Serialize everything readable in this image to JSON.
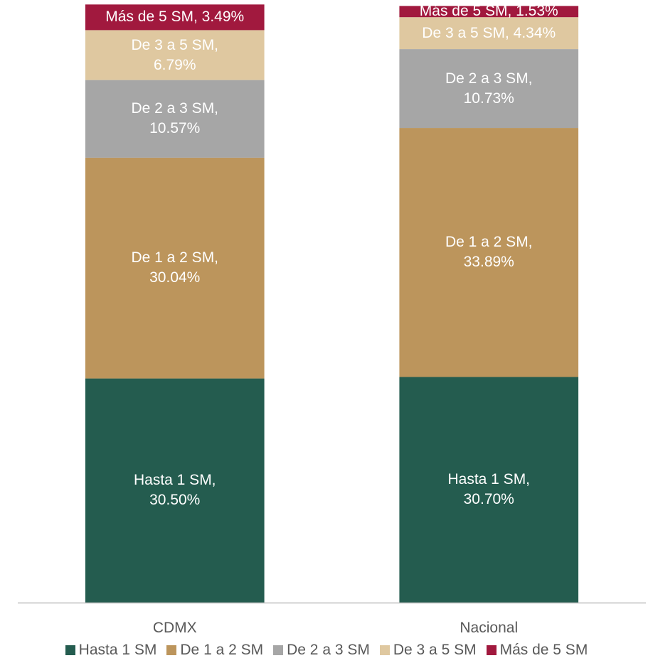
{
  "chart_data": {
    "type": "stacked_bar",
    "categories": [
      "CDMX",
      "Nacional"
    ],
    "series": [
      {
        "name": "Hasta 1 SM",
        "color": "#245c4f",
        "values": [
          30.5,
          30.7
        ],
        "value_labels": [
          "Hasta 1 SM, 30.50%",
          "Hasta 1 SM, 30.70%"
        ]
      },
      {
        "name": "De 1 a 2 SM",
        "color": "#bc955c",
        "values": [
          30.04,
          33.89
        ],
        "value_labels": [
          "De 1 a 2 SM, 30.04%",
          "De 1 a 2 SM, 33.89%"
        ]
      },
      {
        "name": "De 2 a 3 SM",
        "color": "#a6a6a6",
        "values": [
          10.57,
          10.73
        ],
        "value_labels": [
          "De 2 a 3 SM, 10.57%",
          "De 2 a 3 SM, 10.73%"
        ]
      },
      {
        "name": "De 3 a 5 SM",
        "color": "#dfc8a0",
        "values": [
          6.79,
          4.34
        ],
        "value_labels": [
          "De 3 a 5 SM, 6.79%",
          "De 3 a 5 SM, 4.34%"
        ]
      },
      {
        "name": "Más de 5 SM",
        "color": "#a1193e",
        "values": [
          3.49,
          1.53
        ],
        "value_labels": [
          "Más de 5 SM, 3.49%",
          "Más de 5 SM, 1.53%"
        ]
      }
    ],
    "ylim": [
      0,
      82
    ],
    "legend": "bottom"
  }
}
